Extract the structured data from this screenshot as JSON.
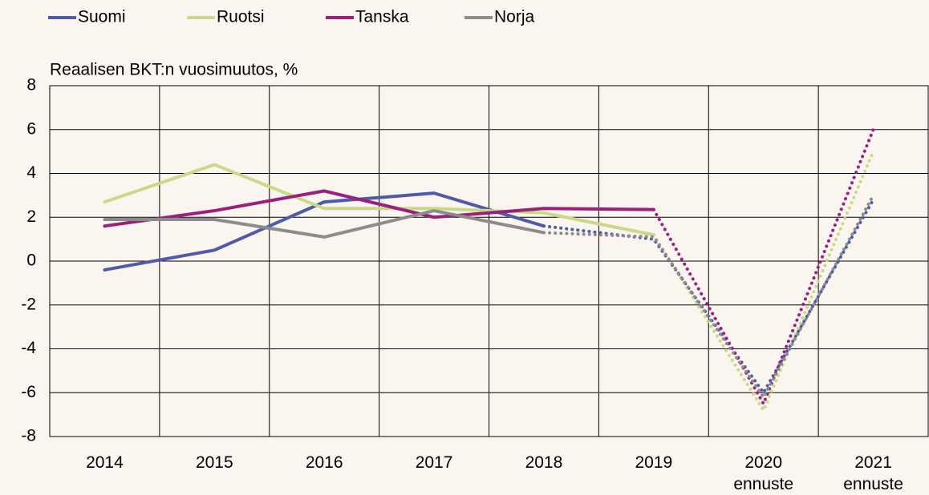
{
  "chart_data": {
    "type": "line",
    "y_axis_label": "Reaalisen BKT:n vuosimuutos, %",
    "categories": [
      "2014",
      "2015",
      "2016",
      "2017",
      "2018",
      "2019",
      "2020 ennuste",
      "2021 ennuste"
    ],
    "series": [
      {
        "name": "Suomi",
        "color": "#4f5ba8",
        "dotted_from": "2018",
        "values": [
          -0.4,
          0.5,
          2.7,
          3.1,
          1.6,
          1.0,
          -6.0,
          2.8
        ]
      },
      {
        "name": "Ruotsi",
        "color": "#c9d98a",
        "dotted_from": "2019",
        "values": [
          2.7,
          4.4,
          2.4,
          2.4,
          2.2,
          1.2,
          -6.8,
          5.0
        ]
      },
      {
        "name": "Tanska",
        "color": "#9b1f7d",
        "dotted_from": "2019",
        "values": [
          1.6,
          2.3,
          3.2,
          2.0,
          2.4,
          2.35,
          -6.5,
          6.0
        ]
      },
      {
        "name": "Norja",
        "color": "#8c8c8c",
        "dotted_from": "2018",
        "values": [
          1.9,
          1.9,
          1.1,
          2.3,
          1.3,
          1.1,
          -6.2,
          3.0
        ]
      }
    ],
    "ylim": [
      -8,
      8
    ],
    "yticks": [
      -8,
      -6,
      -4,
      -2,
      0,
      2,
      4,
      6,
      8
    ],
    "grid": true,
    "legend": "top"
  }
}
